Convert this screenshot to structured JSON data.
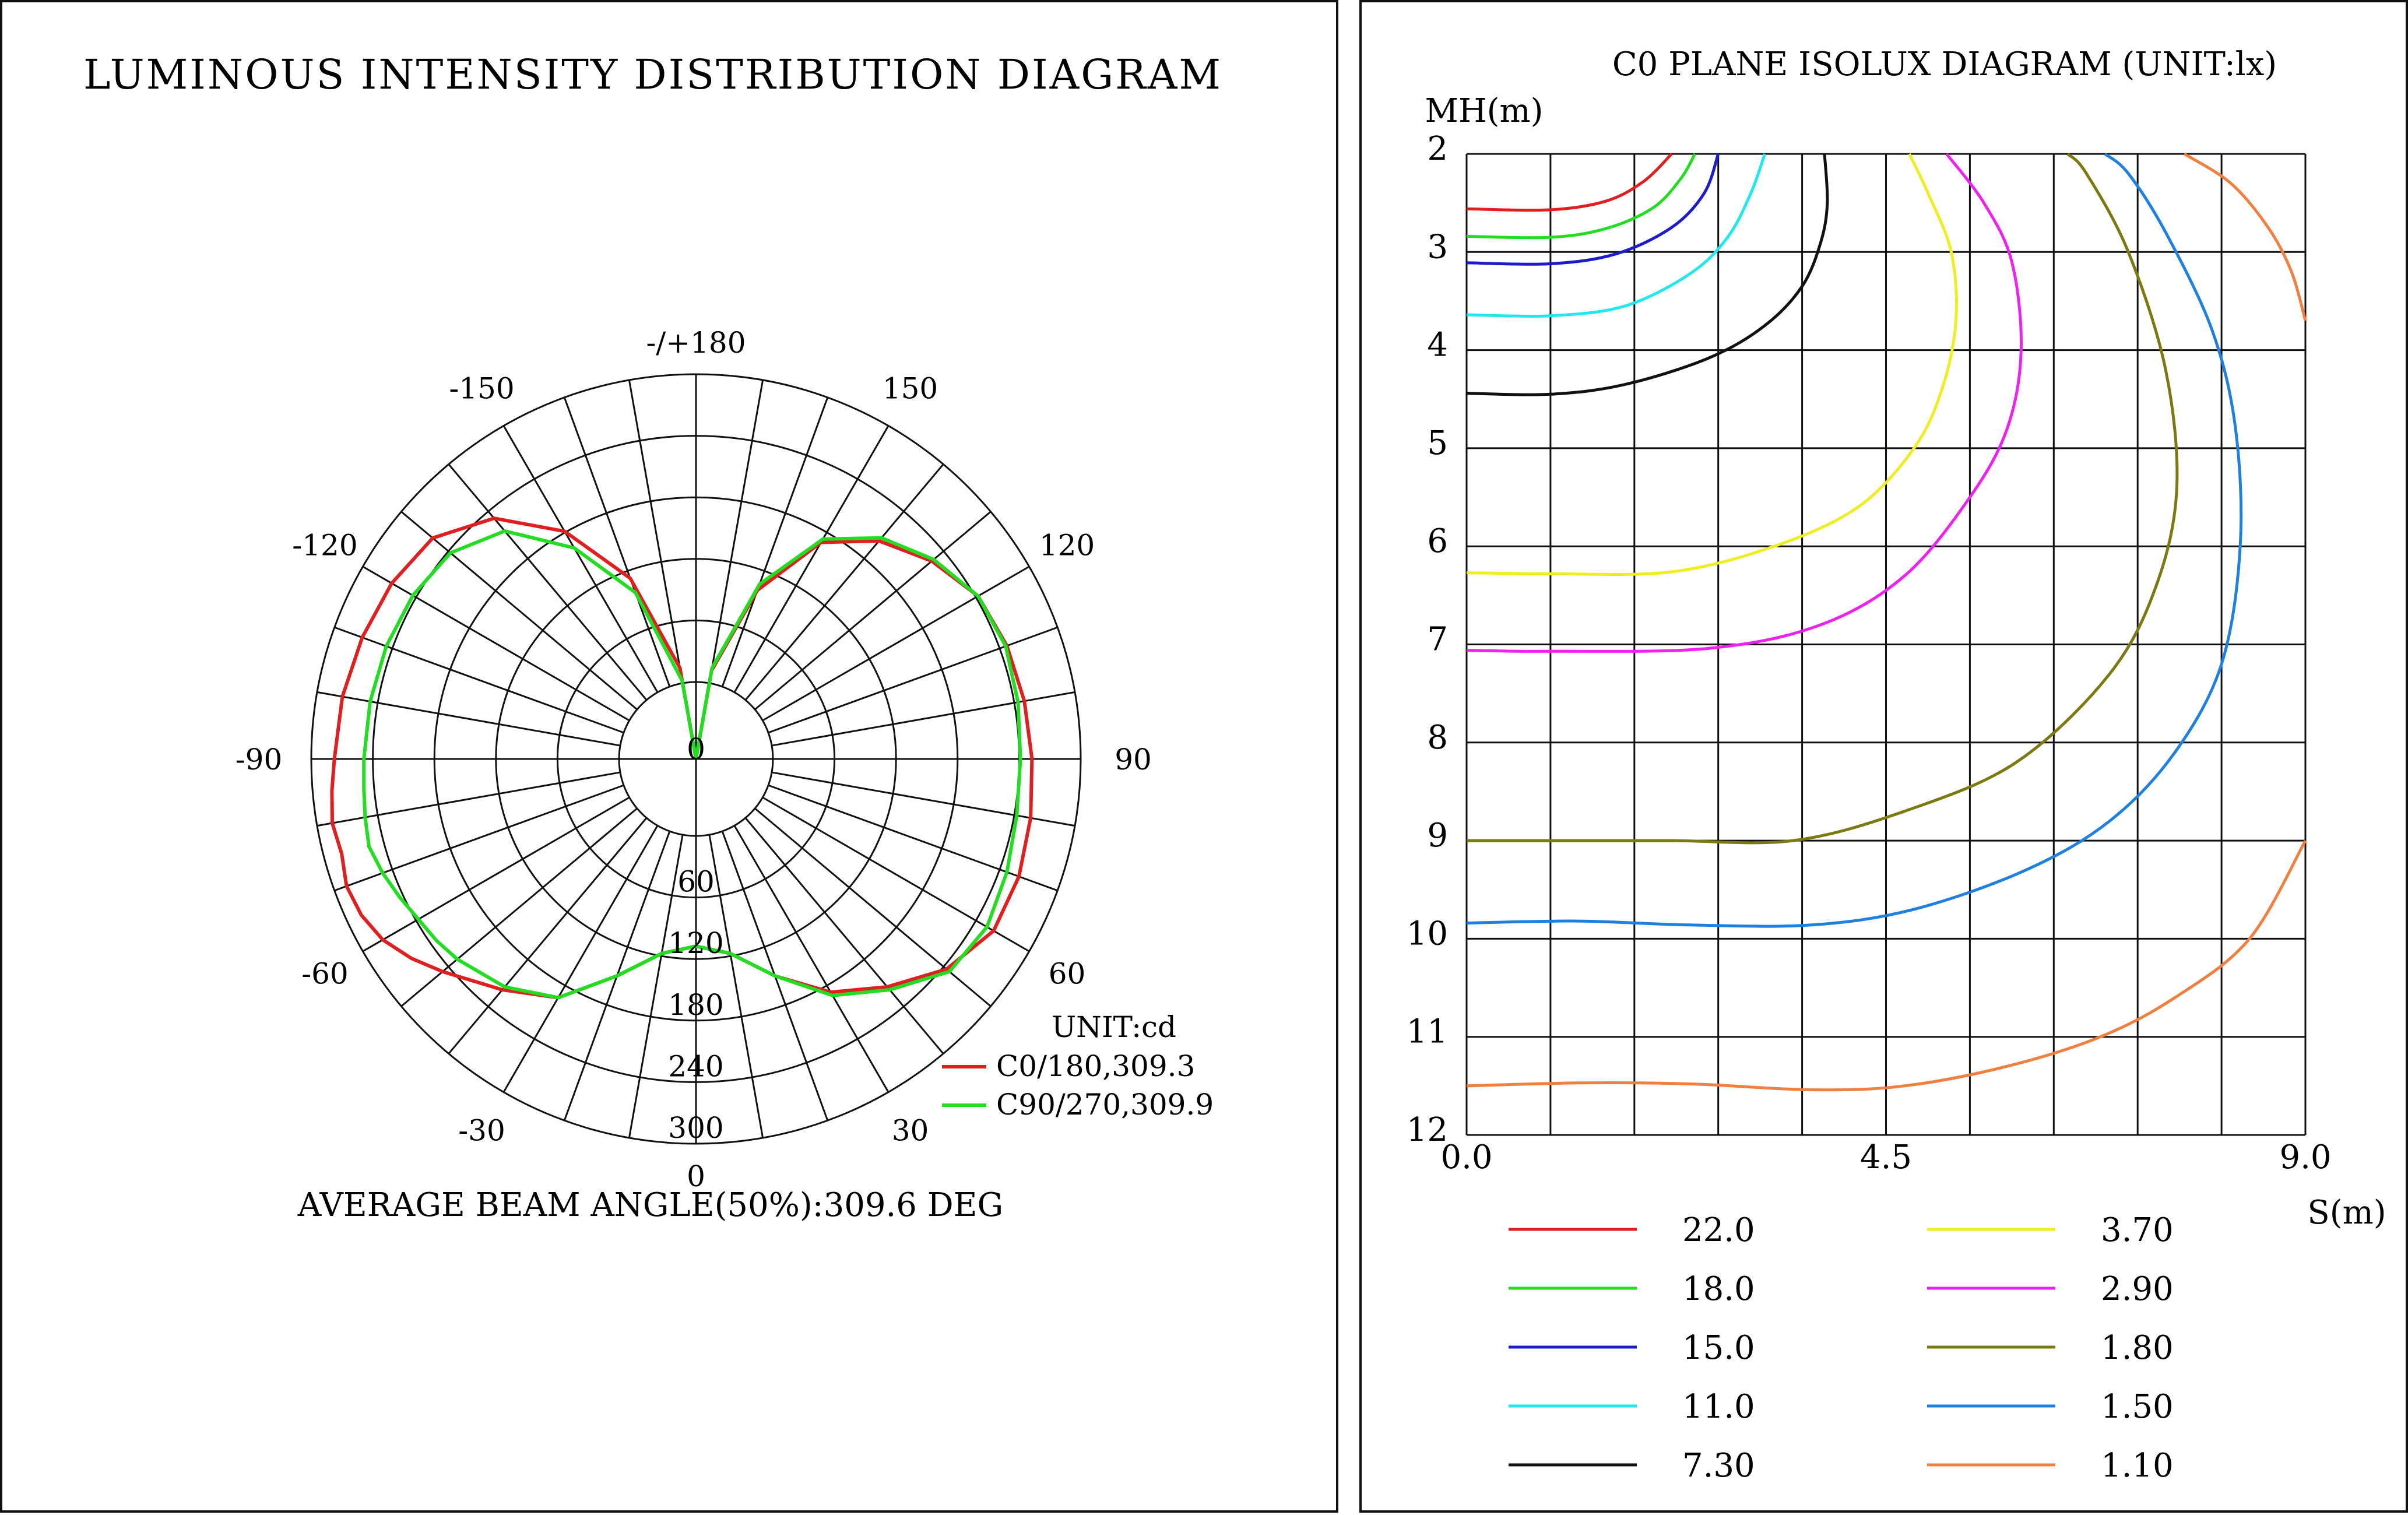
{
  "polar": {
    "title": "LUMINOUS INTENSITY DISTRIBUTION DIAGRAM",
    "unit_label": "UNIT:cd",
    "center_label": "0",
    "beam_angle_text": "AVERAGE BEAM ANGLE(50%):309.6 DEG",
    "angle_labels": [
      "-/+180",
      "150",
      "120",
      "90",
      "60",
      "30",
      "0",
      "-30",
      "-60",
      "-90",
      "-120",
      "-150"
    ],
    "radial_labels": [
      "60",
      "120",
      "180",
      "240",
      "300"
    ],
    "legend": [
      {
        "label": "C0/180,309.3",
        "color": "#e02020"
      },
      {
        "label": "C90/270,309.9",
        "color": "#22dd22"
      }
    ]
  },
  "chart_data": [
    {
      "type": "polar-line",
      "title": "LUMINOUS INTENSITY DISTRIBUTION DIAGRAM",
      "unit": "cd",
      "r_max": 300,
      "r_ticks": [
        60,
        120,
        180,
        240,
        300
      ],
      "series": [
        {
          "name": "C0/180,309.3",
          "color": "#e02020",
          "points": [
            [
              -180,
              0
            ],
            [
              -170,
              72
            ],
            [
              -160,
              150
            ],
            [
              -150,
              205
            ],
            [
              -140,
              245
            ],
            [
              -130,
              268
            ],
            [
              -120,
              274
            ],
            [
              -110,
              277
            ],
            [
              -100,
              280
            ],
            [
              -90,
              282
            ],
            [
              -85,
              285
            ],
            [
              -80,
              288
            ],
            [
              -75,
              286
            ],
            [
              -70,
              290
            ],
            [
              -65,
              288
            ],
            [
              -60,
              282
            ],
            [
              -55,
              271
            ],
            [
              -50,
              258
            ],
            [
              -40,
              235
            ],
            [
              -30,
              215
            ],
            [
              -20,
              180
            ],
            [
              -10,
              154
            ],
            [
              0,
              146
            ],
            [
              10,
              154
            ],
            [
              20,
              180
            ],
            [
              30,
              210
            ],
            [
              40,
              232
            ],
            [
              50,
              255
            ],
            [
              60,
              268
            ],
            [
              70,
              268
            ],
            [
              80,
              265
            ],
            [
              90,
              262
            ],
            [
              100,
              260
            ],
            [
              110,
              258
            ],
            [
              120,
              254
            ],
            [
              130,
              240
            ],
            [
              140,
              222
            ],
            [
              150,
              195
            ],
            [
              160,
              140
            ],
            [
              170,
              70
            ],
            [
              180,
              0
            ]
          ]
        },
        {
          "name": "C90/270,309.9",
          "color": "#22dd22",
          "points": [
            [
              -180,
              0
            ],
            [
              -170,
              62
            ],
            [
              -160,
              138
            ],
            [
              -150,
              190
            ],
            [
              -140,
              232
            ],
            [
              -130,
              250
            ],
            [
              -120,
              255
            ],
            [
              -110,
              257
            ],
            [
              -100,
              258
            ],
            [
              -90,
              259
            ],
            [
              -85,
              260
            ],
            [
              -80,
              262
            ],
            [
              -75,
              264
            ],
            [
              -70,
              260
            ],
            [
              -65,
              255
            ],
            [
              -60,
              250
            ],
            [
              -55,
              247
            ],
            [
              -50,
              243
            ],
            [
              -40,
              232
            ],
            [
              -30,
              215
            ],
            [
              -20,
              180
            ],
            [
              -10,
              154
            ],
            [
              0,
              146
            ],
            [
              10,
              154
            ],
            [
              20,
              180
            ],
            [
              30,
              213
            ],
            [
              40,
              235
            ],
            [
              50,
              258
            ],
            [
              60,
              262
            ],
            [
              70,
              258
            ],
            [
              80,
              254
            ],
            [
              90,
              253
            ],
            [
              100,
              255
            ],
            [
              110,
              257
            ],
            [
              120,
              254
            ],
            [
              130,
              242
            ],
            [
              140,
              225
            ],
            [
              150,
              198
            ],
            [
              160,
              145
            ],
            [
              170,
              72
            ],
            [
              180,
              0
            ]
          ]
        }
      ]
    },
    {
      "type": "line",
      "title": "C0 PLANE ISOLUX DIAGRAM (UNIT:lx)",
      "xlabel": "S(m)",
      "ylabel": "MH(m)",
      "xlim": [
        0,
        9
      ],
      "ylim": [
        2,
        12
      ],
      "y_inverted": true,
      "x_tick_labels": [
        "0.0",
        "4.5",
        "9.0"
      ],
      "y_tick_labels": [
        "2",
        "3",
        "4",
        "5",
        "6",
        "7",
        "8",
        "9",
        "10",
        "11",
        "12"
      ],
      "series": [
        {
          "name": "22.0",
          "color": "#e02020",
          "points": [
            [
              0,
              2.56
            ],
            [
              0.9,
              2.57
            ],
            [
              1.5,
              2.48
            ],
            [
              1.9,
              2.28
            ],
            [
              2.2,
              2.0
            ]
          ]
        },
        {
          "name": "18.0",
          "color": "#22dd22",
          "points": [
            [
              0,
              2.84
            ],
            [
              0.9,
              2.85
            ],
            [
              1.5,
              2.76
            ],
            [
              2.0,
              2.55
            ],
            [
              2.3,
              2.25
            ],
            [
              2.45,
              2.0
            ]
          ]
        },
        {
          "name": "15.0",
          "color": "#1c1cc8",
          "points": [
            [
              0,
              3.11
            ],
            [
              0.9,
              3.12
            ],
            [
              1.6,
              3.02
            ],
            [
              2.2,
              2.75
            ],
            [
              2.55,
              2.4
            ],
            [
              2.7,
              2.0
            ]
          ]
        },
        {
          "name": "11.0",
          "color": "#22e8ee",
          "points": [
            [
              0,
              3.64
            ],
            [
              0.9,
              3.65
            ],
            [
              1.7,
              3.55
            ],
            [
              2.4,
              3.22
            ],
            [
              2.8,
              2.85
            ],
            [
              3.05,
              2.4
            ],
            [
              3.2,
              2.0
            ]
          ]
        },
        {
          "name": "7.30",
          "color": "#111111",
          "points": [
            [
              0,
              4.44
            ],
            [
              0.9,
              4.45
            ],
            [
              1.7,
              4.35
            ],
            [
              2.6,
              4.08
            ],
            [
              3.2,
              3.75
            ],
            [
              3.6,
              3.35
            ],
            [
              3.8,
              2.9
            ],
            [
              3.87,
              2.5
            ],
            [
              3.84,
              2.0
            ]
          ]
        },
        {
          "name": "3.70",
          "color": "#eeee22",
          "points": [
            [
              0,
              6.27
            ],
            [
              0.9,
              6.28
            ],
            [
              2.2,
              6.26
            ],
            [
              3.3,
              6.0
            ],
            [
              4.2,
              5.6
            ],
            [
              4.8,
              5.0
            ],
            [
              5.1,
              4.4
            ],
            [
              5.25,
              3.7
            ],
            [
              5.2,
              3.0
            ],
            [
              4.95,
              2.4
            ],
            [
              4.75,
              2.0
            ]
          ]
        },
        {
          "name": "2.90",
          "color": "#ee22ee",
          "points": [
            [
              0,
              7.06
            ],
            [
              0.9,
              7.07
            ],
            [
              2.6,
              7.04
            ],
            [
              3.8,
              6.8
            ],
            [
              4.7,
              6.3
            ],
            [
              5.4,
              5.5
            ],
            [
              5.8,
              4.8
            ],
            [
              5.95,
              4.0
            ],
            [
              5.85,
              3.1
            ],
            [
              5.55,
              2.5
            ],
            [
              5.15,
              2.0
            ]
          ]
        },
        {
          "name": "1.80",
          "color": "#7a7a10",
          "points": [
            [
              0,
              9.0
            ],
            [
              0.9,
              9.0
            ],
            [
              2.2,
              9.0
            ],
            [
              3.5,
              9.0
            ],
            [
              4.7,
              8.7
            ],
            [
              5.9,
              8.2
            ],
            [
              6.9,
              7.3
            ],
            [
              7.4,
              6.4
            ],
            [
              7.62,
              5.4
            ],
            [
              7.5,
              4.2
            ],
            [
              7.1,
              3.0
            ],
            [
              6.65,
              2.2
            ],
            [
              6.45,
              2.0
            ]
          ]
        },
        {
          "name": "1.50",
          "color": "#2080e0",
          "points": [
            [
              0,
              9.84
            ],
            [
              1.2,
              9.82
            ],
            [
              2.4,
              9.86
            ],
            [
              3.7,
              9.86
            ],
            [
              4.8,
              9.7
            ],
            [
              6.0,
              9.3
            ],
            [
              6.9,
              8.8
            ],
            [
              7.6,
              8.1
            ],
            [
              8.1,
              7.2
            ],
            [
              8.3,
              6.0
            ],
            [
              8.25,
              4.8
            ],
            [
              8.0,
              3.8
            ],
            [
              7.5,
              2.8
            ],
            [
              7.1,
              2.2
            ],
            [
              6.85,
              2.0
            ]
          ]
        },
        {
          "name": "1.10",
          "color": "#f08040",
          "points": [
            [
              0,
              11.5
            ],
            [
              1.2,
              11.47
            ],
            [
              2.4,
              11.48
            ],
            [
              3.7,
              11.54
            ],
            [
              4.7,
              11.5
            ],
            [
              5.8,
              11.3
            ],
            [
              6.8,
              11.0
            ],
            [
              7.6,
              10.6
            ],
            [
              8.4,
              10.0
            ],
            [
              9.0,
              9.0
            ]
          ]
        },
        {
          "name": "1.10",
          "color": "#f08040",
          "points": [
            [
              7.7,
              2.0
            ],
            [
              8.2,
              2.3
            ],
            [
              8.6,
              2.75
            ],
            [
              8.85,
              3.2
            ],
            [
              9.0,
              3.7
            ]
          ]
        }
      ]
    }
  ],
  "isolux": {
    "title": "C0 PLANE ISOLUX DIAGRAM (UNIT:lx)",
    "ylabel": "MH(m)",
    "xlabel": "S(m)",
    "y_ticks": [
      "2",
      "3",
      "4",
      "5",
      "6",
      "7",
      "8",
      "9",
      "10",
      "11",
      "12"
    ],
    "x_ticks": [
      "0.0",
      "4.5",
      "9.0"
    ],
    "legend_left": [
      {
        "label": "22.0",
        "color": "#e02020"
      },
      {
        "label": "18.0",
        "color": "#22dd22"
      },
      {
        "label": "15.0",
        "color": "#1c1cc8"
      },
      {
        "label": "11.0",
        "color": "#22e8ee"
      },
      {
        "label": "7.30",
        "color": "#111111"
      }
    ],
    "legend_right": [
      {
        "label": "3.70",
        "color": "#eeee22"
      },
      {
        "label": "2.90",
        "color": "#ee22ee"
      },
      {
        "label": "1.80",
        "color": "#7a7a10"
      },
      {
        "label": "1.50",
        "color": "#2080e0"
      },
      {
        "label": "1.10",
        "color": "#f08040"
      }
    ]
  }
}
